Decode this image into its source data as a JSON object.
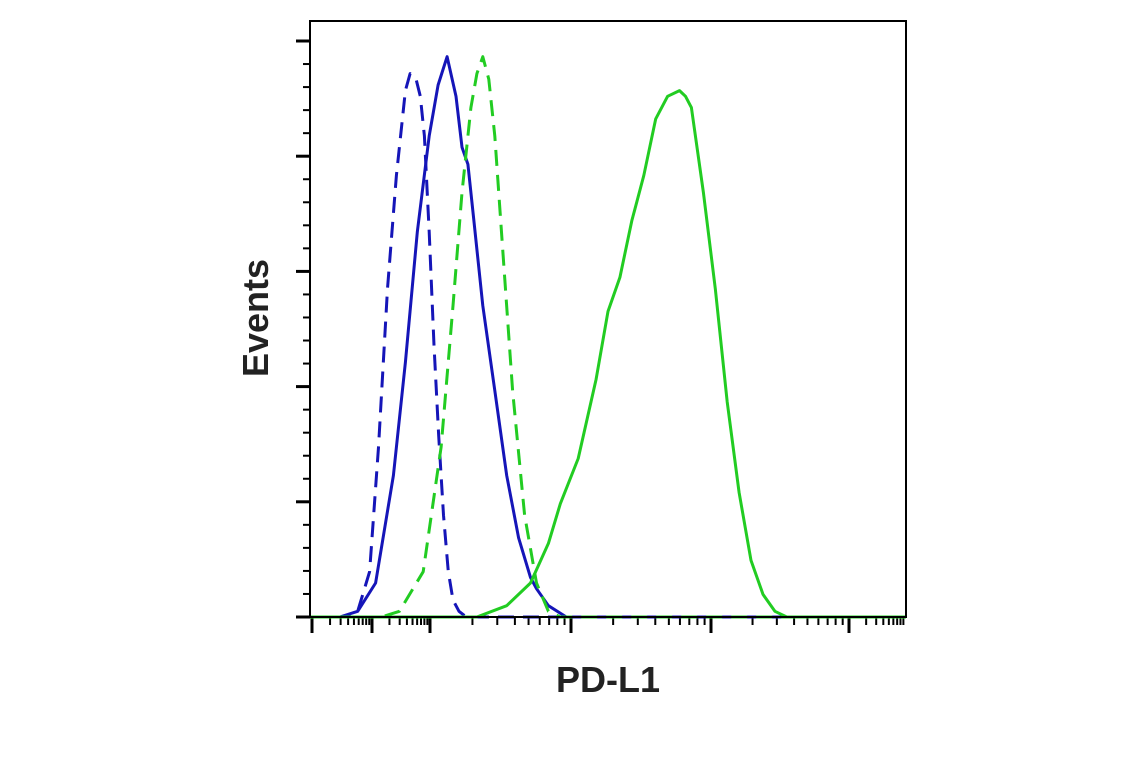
{
  "chart_data": {
    "type": "line",
    "title": "",
    "xlabel": "PD-L1",
    "ylabel": "Events",
    "x_scale": "log",
    "x_tick_labels": [],
    "y_tick_labels": [],
    "legend": "none",
    "grid": false,
    "ylim": [
      0,
      1
    ],
    "colors": {
      "blue": "#1515b8",
      "green": "#22cc22",
      "axis": "#000000"
    },
    "series": [
      {
        "color": "#1515b8",
        "dashed": true,
        "x": [
          0.0,
          0.06,
          0.08,
          0.1,
          0.115,
          0.13,
          0.145,
          0.16,
          0.168,
          0.178,
          0.185,
          0.192,
          0.2,
          0.208,
          0.216,
          0.224,
          0.232,
          0.24,
          0.25,
          0.262,
          0.28,
          0.32,
          1.0
        ],
        "y": [
          0.0,
          0.0,
          0.01,
          0.08,
          0.3,
          0.58,
          0.78,
          0.93,
          0.96,
          0.95,
          0.92,
          0.85,
          0.68,
          0.48,
          0.32,
          0.18,
          0.08,
          0.03,
          0.01,
          0.0,
          0.0,
          0.0,
          0.0
        ]
      },
      {
        "color": "#1515b8",
        "dashed": false,
        "x": [
          0.0,
          0.05,
          0.08,
          0.11,
          0.14,
          0.16,
          0.18,
          0.2,
          0.215,
          0.23,
          0.245,
          0.255,
          0.265,
          0.275,
          0.29,
          0.31,
          0.33,
          0.35,
          0.37,
          0.38,
          0.4,
          0.43,
          0.46,
          0.5,
          0.6,
          1.0
        ],
        "y": [
          0.0,
          0.0,
          0.01,
          0.06,
          0.25,
          0.45,
          0.68,
          0.85,
          0.94,
          0.99,
          0.92,
          0.83,
          0.8,
          0.7,
          0.55,
          0.4,
          0.25,
          0.14,
          0.07,
          0.05,
          0.02,
          0.0,
          0.0,
          0.0,
          0.0,
          0.0
        ]
      },
      {
        "color": "#22cc22",
        "dashed": true,
        "x": [
          0.0,
          0.12,
          0.15,
          0.19,
          0.22,
          0.24,
          0.255,
          0.27,
          0.28,
          0.29,
          0.3,
          0.31,
          0.32,
          0.34,
          0.36,
          0.38,
          0.4,
          0.42,
          0.45,
          0.5,
          1.0
        ],
        "y": [
          0.0,
          0.0,
          0.01,
          0.08,
          0.3,
          0.55,
          0.75,
          0.9,
          0.96,
          0.99,
          0.95,
          0.85,
          0.7,
          0.4,
          0.18,
          0.06,
          0.01,
          0.0,
          0.0,
          0.0,
          0.0
        ]
      },
      {
        "color": "#22cc22",
        "dashed": false,
        "x": [
          0.0,
          0.28,
          0.33,
          0.37,
          0.4,
          0.42,
          0.45,
          0.48,
          0.5,
          0.52,
          0.54,
          0.56,
          0.58,
          0.6,
          0.62,
          0.63,
          0.64,
          0.66,
          0.68,
          0.7,
          0.72,
          0.74,
          0.76,
          0.78,
          0.8,
          0.84,
          1.0
        ],
        "y": [
          0.0,
          0.0,
          0.02,
          0.06,
          0.13,
          0.2,
          0.28,
          0.42,
          0.54,
          0.6,
          0.7,
          0.78,
          0.88,
          0.92,
          0.93,
          0.92,
          0.9,
          0.75,
          0.58,
          0.38,
          0.22,
          0.1,
          0.04,
          0.01,
          0.0,
          0.0,
          0.0
        ]
      }
    ]
  }
}
